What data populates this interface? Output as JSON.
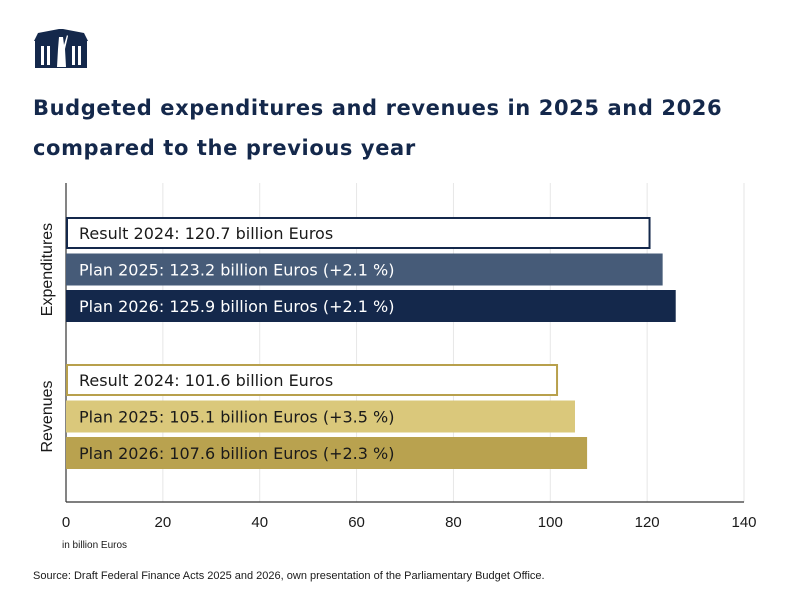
{
  "header": {
    "logo": "Bundestag building logo",
    "title_line1": "Budgeted expenditures and revenues in 2025 and 2026",
    "title_line2": "compared to the previous year"
  },
  "chart_data": {
    "type": "bar",
    "orientation": "horizontal",
    "xlim": [
      0,
      140
    ],
    "xticks": [
      0,
      20,
      40,
      60,
      80,
      100,
      120,
      140
    ],
    "xlabel": "in billion Euros",
    "grid": true,
    "groups": [
      {
        "name": "Expenditures",
        "bars": [
          {
            "label": "Result 2024: 120.7 billion Euros",
            "value": 120.7,
            "color": "#ffffff",
            "border": "#14284b",
            "text_color": "#1a1a1a"
          },
          {
            "label": "Plan 2025: 123.2 billion Euros (+2.1 %)",
            "value": 123.2,
            "color": "#465b78",
            "border": "#465b78",
            "text_color": "#ffffff"
          },
          {
            "label": "Plan 2026: 125.9 billion Euros (+2.1 %)",
            "value": 125.9,
            "color": "#14284b",
            "border": "#14284b",
            "text_color": "#ffffff"
          }
        ]
      },
      {
        "name": "Revenues",
        "bars": [
          {
            "label": "Result 2024: 101.6 billion Euros",
            "value": 101.6,
            "color": "#ffffff",
            "border": "#b8a04c",
            "text_color": "#1a1a1a"
          },
          {
            "label": "Plan 2025: 105.1 billion Euros (+3.5 %)",
            "value": 105.1,
            "color": "#dac87b",
            "border": "#dac87b",
            "text_color": "#1a1a1a"
          },
          {
            "label": "Plan 2026: 107.6 billion Euros (+2.3 %)",
            "value": 107.6,
            "color": "#b9a24f",
            "border": "#b9a24f",
            "text_color": "#1a1a1a"
          }
        ]
      }
    ]
  },
  "footer": {
    "source": "Source: Draft Federal Finance Acts 2025 and 2026, own presentation of the Parliamentary Budget Office."
  }
}
